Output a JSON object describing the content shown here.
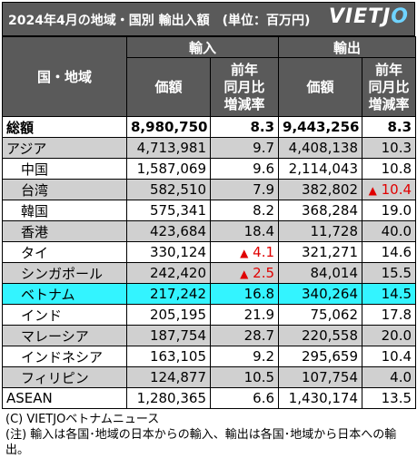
{
  "title": "2024年4月の地域・国別 輸出入額　(単位：百万円)",
  "logo": "VIETJO",
  "headers": {
    "region": "国・地域",
    "import": "輸入",
    "export": "輸出",
    "value": "価額",
    "change": [
      "前年",
      "同月比",
      "増減率"
    ]
  },
  "rows": [
    {
      "name": "総額",
      "imp": "8,980,750",
      "imp_chg": "8.3",
      "exp": "9,443,256",
      "exp_chg": "8.3",
      "style": "total",
      "indent": false,
      "imp_red": false,
      "exp_red": false
    },
    {
      "name": "アジア",
      "imp": "4,713,981",
      "imp_chg": "9.7",
      "exp": "4,408,138",
      "exp_chg": "10.3",
      "style": "grey",
      "indent": false,
      "imp_red": false,
      "exp_red": false
    },
    {
      "name": "中国",
      "imp": "1,587,069",
      "imp_chg": "9.6",
      "exp": "2,114,043",
      "exp_chg": "10.8",
      "style": "white",
      "indent": true,
      "imp_red": false,
      "exp_red": false
    },
    {
      "name": "台湾",
      "imp": "582,510",
      "imp_chg": "7.9",
      "exp": "382,802",
      "exp_chg": "10.4",
      "style": "grey",
      "indent": true,
      "imp_red": false,
      "exp_red": true
    },
    {
      "name": "韓国",
      "imp": "575,341",
      "imp_chg": "8.2",
      "exp": "368,284",
      "exp_chg": "19.0",
      "style": "white",
      "indent": true,
      "imp_red": false,
      "exp_red": false
    },
    {
      "name": "香港",
      "imp": "423,684",
      "imp_chg": "18.4",
      "exp": "11,728",
      "exp_chg": "40.0",
      "style": "grey",
      "indent": true,
      "imp_red": false,
      "exp_red": false
    },
    {
      "name": "タイ",
      "imp": "330,124",
      "imp_chg": "4.1",
      "exp": "321,271",
      "exp_chg": "14.6",
      "style": "white",
      "indent": true,
      "imp_red": true,
      "exp_red": false
    },
    {
      "name": "シンガポール",
      "imp": "242,420",
      "imp_chg": "2.5",
      "exp": "84,014",
      "exp_chg": "15.5",
      "style": "grey",
      "indent": true,
      "imp_red": true,
      "exp_red": false
    },
    {
      "name": "ベトナム",
      "imp": "217,242",
      "imp_chg": "16.8",
      "exp": "340,264",
      "exp_chg": "14.5",
      "style": "hl",
      "indent": true,
      "imp_red": false,
      "exp_red": false
    },
    {
      "name": "インド",
      "imp": "205,195",
      "imp_chg": "21.9",
      "exp": "75,062",
      "exp_chg": "17.8",
      "style": "white",
      "indent": true,
      "imp_red": false,
      "exp_red": false
    },
    {
      "name": "マレーシア",
      "imp": "187,754",
      "imp_chg": "28.7",
      "exp": "220,558",
      "exp_chg": "20.0",
      "style": "grey",
      "indent": true,
      "imp_red": false,
      "exp_red": false
    },
    {
      "name": "インドネシア",
      "imp": "163,105",
      "imp_chg": "9.2",
      "exp": "295,659",
      "exp_chg": "10.4",
      "style": "white",
      "indent": true,
      "imp_red": false,
      "exp_red": false
    },
    {
      "name": "フィリピン",
      "imp": "124,877",
      "imp_chg": "10.5",
      "exp": "107,754",
      "exp_chg": "4.0",
      "style": "grey",
      "indent": true,
      "imp_red": false,
      "exp_red": false
    },
    {
      "name": "ASEAN",
      "imp": "1,280,365",
      "imp_chg": "6.6",
      "exp": "1,430,174",
      "exp_chg": "13.5",
      "style": "white",
      "indent": false,
      "imp_red": false,
      "exp_red": false
    }
  ],
  "decrease_marker": "▲",
  "notes": [
    "(C) VIETJOベトナムニュース",
    "(注) 輸入は各国･地域の日本からの輸入、輸出は各国･地域から日本への輸出。"
  ],
  "colors": {
    "header_bg": "#5a5a5a",
    "grey_row": "#d0d0d0",
    "highlight_row": "#33f4ff",
    "decrease": "#e00000",
    "logo_accent": "#6fd3ff"
  }
}
